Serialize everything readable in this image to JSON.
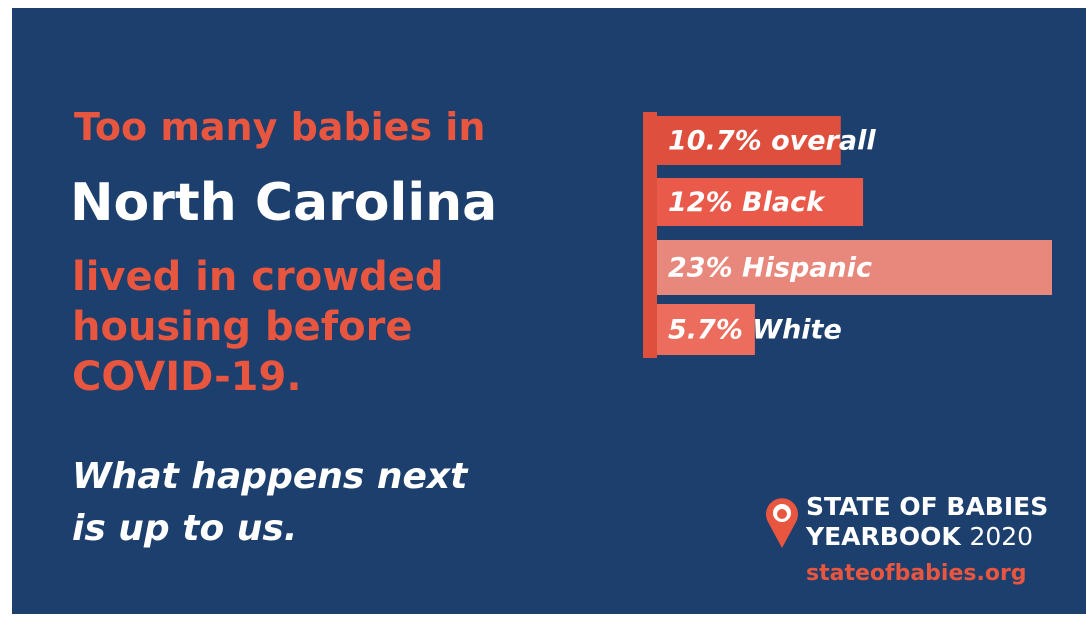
{
  "chart_data": {
    "type": "bar",
    "categories": [
      "overall",
      "Black",
      "Hispanic",
      "White"
    ],
    "values": [
      10.7,
      12,
      23,
      5.7
    ],
    "value_labels": [
      "10.7%",
      "12%",
      "23%",
      "5.7%"
    ],
    "colors": [
      "#df4f3e",
      "#ea5a4b",
      "#e8877c",
      "#ec6c5d"
    ]
  },
  "text": {
    "intro": "Too many babies in",
    "place": "North Carolina",
    "lines": [
      "lived in crowded",
      "housing before",
      "COVID-19."
    ],
    "call": [
      "What happens next",
      "is up to us."
    ]
  },
  "logo": {
    "line1": "STATE OF BABIES",
    "line2": "YEARBOOK",
    "year": "2020",
    "url": "stateofbabies.org"
  }
}
